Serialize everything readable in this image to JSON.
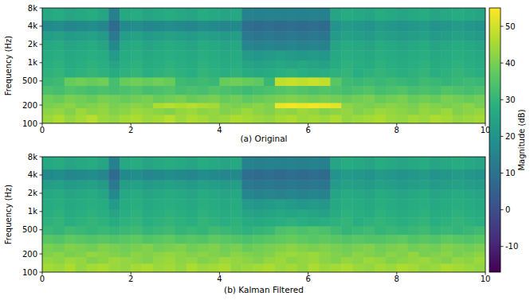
{
  "chart_data": [
    {
      "type": "heatmap",
      "title": "(a) Original",
      "y_label": "Frequency (Hz)",
      "log": "y",
      "xlim": [
        0,
        10
      ],
      "xticks": [
        0,
        2,
        4,
        6,
        8,
        10
      ],
      "ylim": [
        100,
        8000
      ],
      "yticks": [
        100,
        200,
        500,
        {
          "value": 1000,
          "label": "1k"
        },
        {
          "value": 2000,
          "label": "2k"
        },
        {
          "value": 4000,
          "label": "4k"
        },
        {
          "value": 8000,
          "label": "8k"
        }
      ],
      "x_bins": [
        0,
        0.25,
        0.5,
        0.75,
        1,
        1.25,
        1.5,
        1.75,
        2,
        2.25,
        2.5,
        2.75,
        3,
        3.25,
        3.5,
        3.75,
        4,
        4.25,
        4.5,
        4.75,
        5,
        5.25,
        5.5,
        5.75,
        6,
        6.25,
        6.5,
        6.75,
        7,
        7.25,
        7.5,
        7.75,
        8,
        8.25,
        8.5,
        8.75,
        9,
        9.25,
        9.5,
        9.75,
        10
      ],
      "y_bins": [
        100,
        140,
        180,
        220,
        300,
        420,
        580,
        800,
        1100,
        1600,
        2300,
        3300,
        5000,
        8000
      ],
      "cells": [
        [
          44,
          46,
          43,
          45,
          47,
          44,
          43,
          45,
          46,
          44,
          45,
          47,
          44,
          46,
          45,
          43,
          44,
          46,
          45,
          44,
          43,
          45,
          46,
          44,
          45,
          44,
          46,
          43,
          44,
          45,
          46,
          44,
          43,
          45,
          44,
          46,
          45,
          43,
          44,
          45
        ],
        [
          42,
          43,
          41,
          44,
          42,
          43,
          41,
          42,
          44,
          43,
          42,
          41,
          43,
          44,
          42,
          43,
          41,
          42,
          44,
          42,
          41,
          43,
          42,
          44,
          43,
          41,
          42,
          43,
          41,
          42,
          44,
          43,
          42,
          41,
          43,
          42,
          44,
          41,
          42,
          43
        ],
        [
          40,
          41,
          42,
          40,
          41,
          42,
          40,
          41,
          42,
          41,
          46,
          47,
          46,
          47,
          46,
          45,
          41,
          40,
          41,
          42,
          41,
          53,
          54,
          53,
          54,
          53,
          52,
          42,
          41,
          40,
          41,
          42,
          41,
          40,
          42,
          41,
          40,
          41,
          42,
          40
        ],
        [
          39,
          38,
          40,
          39,
          38,
          40,
          39,
          38,
          39,
          40,
          38,
          39,
          40,
          38,
          39,
          40,
          38,
          39,
          37,
          38,
          39,
          40,
          41,
          40,
          39,
          40,
          39,
          38,
          39,
          40,
          38,
          39,
          40,
          38,
          39,
          38,
          40,
          39,
          38,
          39
        ],
        [
          34,
          33,
          35,
          34,
          33,
          34,
          33,
          34,
          35,
          33,
          34,
          35,
          33,
          34,
          33,
          35,
          34,
          33,
          32,
          33,
          34,
          35,
          36,
          35,
          34,
          35,
          34,
          33,
          34,
          35,
          33,
          34,
          35,
          33,
          34,
          33,
          35,
          34,
          33,
          34
        ],
        [
          31,
          32,
          38,
          39,
          38,
          39,
          33,
          38,
          39,
          38,
          39,
          38,
          32,
          31,
          32,
          31,
          38,
          39,
          38,
          37,
          31,
          48,
          49,
          48,
          49,
          48,
          36,
          32,
          31,
          32,
          31,
          32,
          31,
          30,
          32,
          31,
          30,
          31,
          32,
          31
        ],
        [
          29,
          30,
          28,
          29,
          30,
          29,
          27,
          29,
          30,
          28,
          29,
          30,
          29,
          28,
          30,
          29,
          28,
          29,
          27,
          26,
          27,
          28,
          29,
          28,
          27,
          28,
          29,
          30,
          28,
          29,
          30,
          29,
          28,
          29,
          30,
          28,
          29,
          30,
          29,
          28
        ],
        [
          28,
          29,
          27,
          28,
          29,
          28,
          25,
          28,
          29,
          27,
          28,
          29,
          28,
          27,
          29,
          28,
          27,
          28,
          25,
          24,
          25,
          26,
          25,
          26,
          25,
          24,
          27,
          29,
          28,
          27,
          29,
          28,
          27,
          28,
          29,
          27,
          28,
          29,
          28,
          27
        ],
        [
          27,
          28,
          26,
          27,
          28,
          27,
          22,
          27,
          28,
          26,
          27,
          28,
          27,
          26,
          28,
          27,
          26,
          27,
          22,
          21,
          22,
          23,
          22,
          21,
          22,
          21,
          26,
          28,
          27,
          26,
          28,
          27,
          26,
          27,
          28,
          26,
          27,
          28,
          27,
          26
        ],
        [
          26,
          27,
          25,
          26,
          27,
          25,
          17,
          26,
          27,
          25,
          26,
          27,
          26,
          25,
          27,
          26,
          25,
          26,
          16,
          15,
          16,
          15,
          16,
          15,
          16,
          15,
          25,
          27,
          26,
          25,
          27,
          26,
          25,
          26,
          27,
          25,
          26,
          27,
          26,
          25
        ],
        [
          23,
          24,
          22,
          23,
          24,
          22,
          12,
          23,
          24,
          22,
          23,
          24,
          23,
          22,
          24,
          23,
          22,
          23,
          12,
          11,
          12,
          11,
          12,
          11,
          12,
          11,
          22,
          24,
          23,
          22,
          24,
          23,
          22,
          23,
          24,
          22,
          23,
          24,
          23,
          22
        ],
        [
          17,
          18,
          16,
          17,
          18,
          16,
          8,
          17,
          18,
          16,
          17,
          18,
          17,
          16,
          18,
          17,
          16,
          17,
          9,
          8,
          9,
          8,
          9,
          8,
          9,
          8,
          20,
          22,
          21,
          20,
          22,
          21,
          20,
          21,
          22,
          20,
          21,
          22,
          21,
          20
        ],
        [
          26,
          27,
          25,
          26,
          27,
          25,
          14,
          26,
          27,
          25,
          26,
          27,
          26,
          25,
          27,
          26,
          25,
          26,
          15,
          14,
          15,
          14,
          15,
          14,
          15,
          14,
          25,
          27,
          26,
          25,
          27,
          26,
          25,
          26,
          27,
          25,
          26,
          27,
          26,
          25
        ]
      ],
      "colorbar": {
        "label": "Magnitude (dB)",
        "range": [
          -17,
          55
        ],
        "ticks": [
          -10,
          0,
          10,
          20,
          30,
          40,
          50
        ]
      }
    },
    {
      "type": "heatmap",
      "title": "(b) Kalman Filtered",
      "y_label": "Frequency (Hz)",
      "log": "y",
      "xlim": [
        0,
        10
      ],
      "xticks": [
        0,
        2,
        4,
        6,
        8,
        10
      ],
      "ylim": [
        100,
        8000
      ],
      "yticks": [
        100,
        200,
        500,
        {
          "value": 1000,
          "label": "1k"
        },
        {
          "value": 2000,
          "label": "2k"
        },
        {
          "value": 4000,
          "label": "4k"
        },
        {
          "value": 8000,
          "label": "8k"
        }
      ],
      "x_bins": [
        0,
        0.25,
        0.5,
        0.75,
        1,
        1.25,
        1.5,
        1.75,
        2,
        2.25,
        2.5,
        2.75,
        3,
        3.25,
        3.5,
        3.75,
        4,
        4.25,
        4.5,
        4.75,
        5,
        5.25,
        5.5,
        5.75,
        6,
        6.25,
        6.5,
        6.75,
        7,
        7.25,
        7.5,
        7.75,
        8,
        8.25,
        8.5,
        8.75,
        9,
        9.25,
        9.5,
        9.75,
        10
      ],
      "y_bins": [
        100,
        140,
        180,
        220,
        300,
        420,
        580,
        800,
        1100,
        1600,
        2300,
        3300,
        5000,
        8000
      ],
      "cells": [
        [
          45,
          44,
          46,
          43,
          45,
          46,
          44,
          43,
          45,
          46,
          44,
          45,
          43,
          46,
          44,
          45,
          46,
          43,
          44,
          45,
          46,
          44,
          45,
          43,
          46,
          44,
          45,
          46,
          44,
          43,
          45,
          44,
          46,
          45,
          43,
          44,
          46,
          45,
          44,
          43
        ],
        [
          43,
          42,
          44,
          43,
          41,
          42,
          44,
          43,
          42,
          41,
          43,
          44,
          42,
          43,
          41,
          42,
          44,
          43,
          42,
          41,
          43,
          44,
          42,
          43,
          44,
          42,
          41,
          43,
          42,
          44,
          43,
          41,
          42,
          43,
          44,
          42,
          41,
          43,
          42,
          44
        ],
        [
          41,
          42,
          40,
          41,
          43,
          42,
          41,
          40,
          42,
          41,
          42,
          43,
          42,
          41,
          42,
          41,
          40,
          42,
          41,
          40,
          41,
          43,
          44,
          43,
          44,
          42,
          41,
          40,
          42,
          41,
          40,
          42,
          41,
          43,
          40,
          41,
          42,
          40,
          41,
          42
        ],
        [
          40,
          39,
          41,
          40,
          39,
          41,
          40,
          39,
          40,
          41,
          39,
          40,
          41,
          39,
          40,
          41,
          39,
          40,
          38,
          39,
          40,
          41,
          42,
          41,
          40,
          41,
          40,
          39,
          40,
          41,
          39,
          40,
          41,
          39,
          40,
          39,
          41,
          40,
          39,
          40
        ],
        [
          36,
          35,
          37,
          36,
          35,
          36,
          35,
          36,
          37,
          35,
          36,
          37,
          35,
          36,
          35,
          37,
          36,
          35,
          34,
          35,
          36,
          37,
          38,
          37,
          36,
          37,
          36,
          35,
          36,
          35,
          35,
          36,
          37,
          35,
          36,
          35,
          37,
          36,
          35,
          36
        ],
        [
          31,
          30,
          32,
          31,
          30,
          31,
          30,
          31,
          32,
          30,
          31,
          32,
          30,
          31,
          30,
          32,
          31,
          30,
          29,
          30,
          31,
          34,
          35,
          34,
          35,
          34,
          32,
          30,
          31,
          32,
          30,
          31,
          30,
          31,
          32,
          30,
          31,
          30,
          31,
          32
        ],
        [
          29,
          30,
          28,
          29,
          30,
          29,
          27,
          29,
          30,
          28,
          29,
          30,
          29,
          28,
          30,
          29,
          28,
          29,
          27,
          26,
          27,
          28,
          29,
          28,
          27,
          28,
          29,
          30,
          28,
          29,
          30,
          29,
          28,
          29,
          30,
          28,
          29,
          30,
          29,
          28
        ],
        [
          28,
          29,
          27,
          28,
          29,
          28,
          25,
          28,
          29,
          27,
          28,
          29,
          28,
          27,
          29,
          28,
          27,
          28,
          25,
          24,
          25,
          26,
          25,
          26,
          25,
          24,
          27,
          29,
          28,
          27,
          29,
          28,
          27,
          28,
          29,
          27,
          28,
          29,
          28,
          27
        ],
        [
          27,
          28,
          26,
          27,
          28,
          27,
          22,
          27,
          28,
          26,
          27,
          28,
          27,
          26,
          28,
          27,
          26,
          27,
          22,
          21,
          22,
          23,
          22,
          21,
          22,
          21,
          26,
          28,
          27,
          26,
          28,
          27,
          26,
          27,
          28,
          26,
          27,
          28,
          27,
          26
        ],
        [
          26,
          27,
          25,
          26,
          27,
          25,
          17,
          26,
          27,
          25,
          26,
          27,
          26,
          25,
          27,
          26,
          25,
          26,
          16,
          15,
          16,
          15,
          16,
          15,
          16,
          15,
          25,
          27,
          26,
          25,
          27,
          26,
          25,
          26,
          27,
          25,
          26,
          27,
          26,
          25
        ],
        [
          23,
          24,
          22,
          23,
          24,
          22,
          12,
          23,
          24,
          22,
          23,
          24,
          23,
          22,
          24,
          23,
          22,
          23,
          12,
          11,
          12,
          11,
          12,
          11,
          12,
          11,
          22,
          24,
          23,
          22,
          24,
          23,
          22,
          23,
          24,
          22,
          23,
          24,
          23,
          22
        ],
        [
          17,
          18,
          16,
          17,
          18,
          16,
          8,
          17,
          18,
          16,
          17,
          18,
          17,
          16,
          18,
          17,
          16,
          17,
          9,
          8,
          9,
          8,
          9,
          8,
          9,
          8,
          20,
          22,
          21,
          20,
          22,
          21,
          20,
          21,
          22,
          20,
          21,
          22,
          21,
          20
        ],
        [
          26,
          27,
          25,
          26,
          27,
          25,
          14,
          26,
          27,
          25,
          26,
          27,
          26,
          25,
          27,
          26,
          25,
          26,
          15,
          14,
          15,
          14,
          15,
          14,
          15,
          14,
          25,
          27,
          26,
          25,
          27,
          26,
          25,
          26,
          27,
          25,
          26,
          27,
          26,
          25
        ]
      ]
    }
  ]
}
